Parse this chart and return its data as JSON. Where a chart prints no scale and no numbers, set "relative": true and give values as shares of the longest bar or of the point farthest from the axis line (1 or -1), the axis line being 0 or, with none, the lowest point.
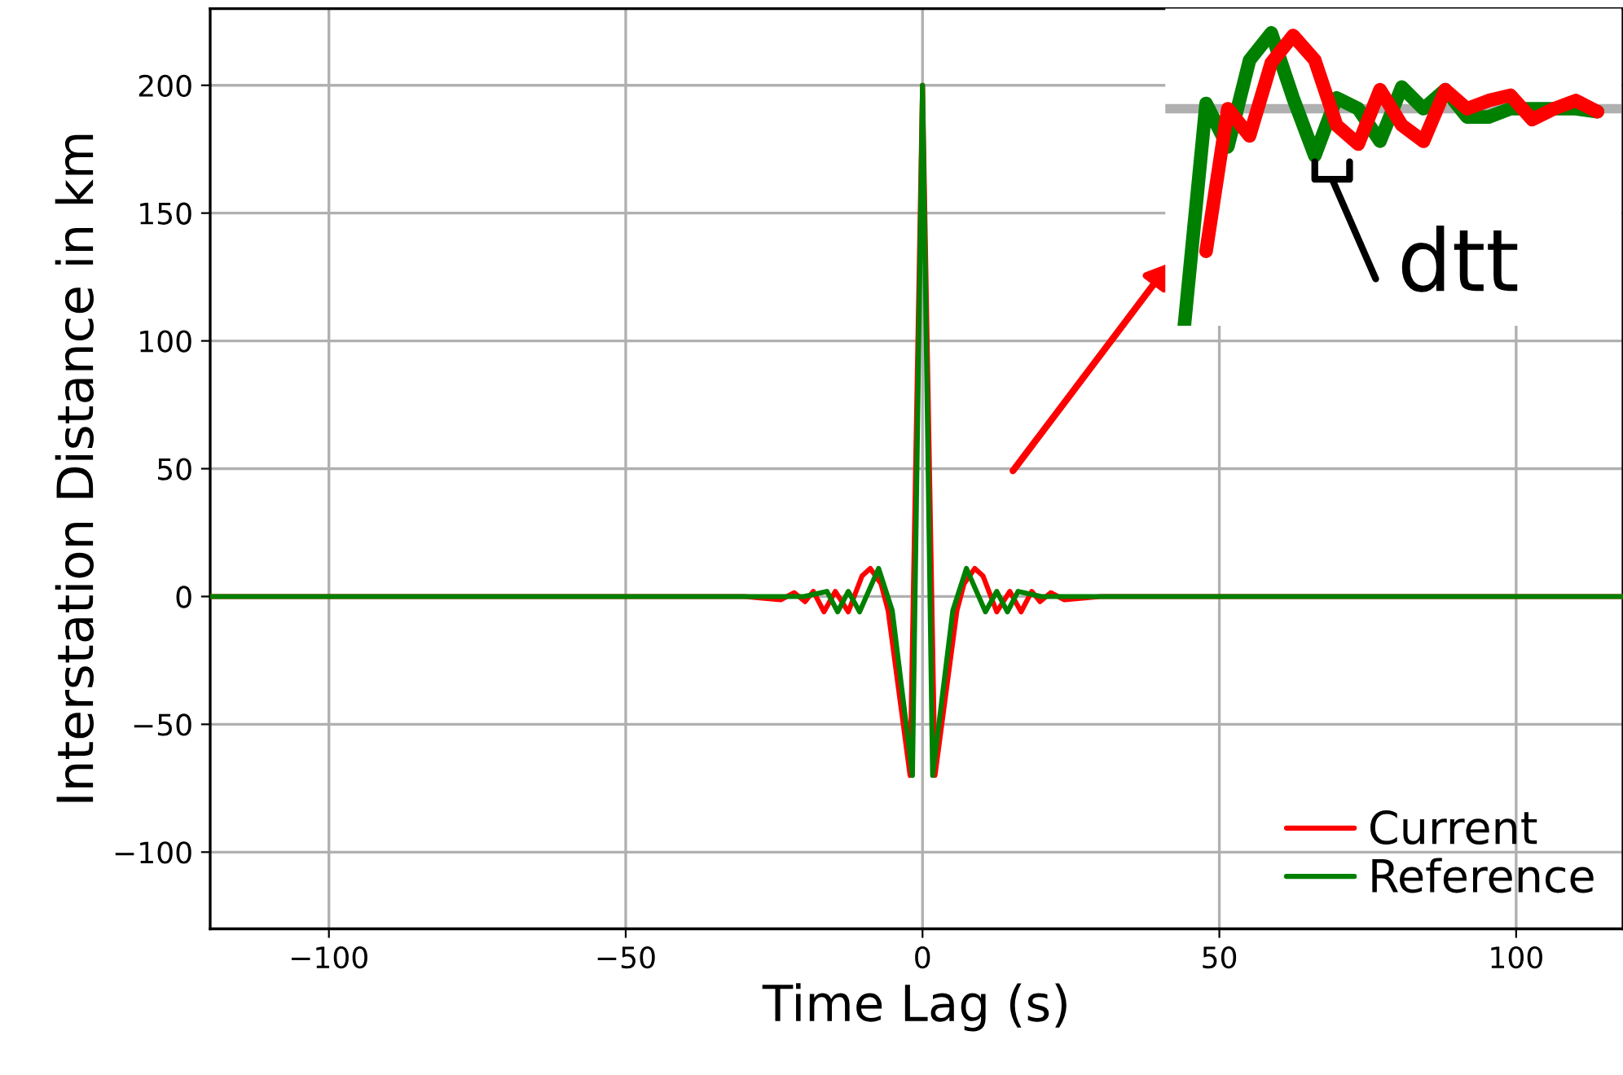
{
  "chart_data": [
    {
      "type": "line",
      "xlabel": "Time Lag (s)",
      "ylabel": "Interstation Distance in km",
      "xlim": [
        -120,
        118
      ],
      "ylim": [
        -130,
        230
      ],
      "xticks": [
        {
          "value": -100,
          "label": "−100"
        },
        {
          "value": -50,
          "label": "−50"
        },
        0,
        50,
        100
      ],
      "yticks": [
        {
          "value": -100,
          "label": "−100"
        },
        {
          "value": -50,
          "label": "−50"
        },
        0,
        50,
        100,
        150,
        200
      ],
      "grid": true,
      "legend": "bottom right",
      "marker": "none",
      "line_style": "solid",
      "series": [
        {
          "name": "Current",
          "color": "#ff0000",
          "x": [
            -120,
            -30,
            -23.9,
            -21.6,
            -19.8,
            -18.4,
            -16.6,
            -14.7,
            -12.5,
            -10.2,
            -8.8,
            -7,
            -5.8,
            -2.1,
            0,
            2.1,
            5.8,
            7,
            8.8,
            10.2,
            12.5,
            14.7,
            16.6,
            18.4,
            19.8,
            21.6,
            23.9,
            30,
            118
          ],
          "values": [
            0,
            0,
            -1.3,
            1.5,
            -2,
            2,
            -6,
            2,
            -6,
            8,
            11,
            5,
            -5.5,
            -70,
            200,
            -70,
            -5.5,
            5,
            11,
            8,
            -6,
            2,
            -6,
            2,
            -2,
            1.5,
            -1.3,
            0,
            0
          ]
        },
        {
          "name": "Reference",
          "color": "#008000",
          "x": [
            -120,
            -30,
            -20,
            -16.1,
            -14.3,
            -12.5,
            -10.6,
            -7.4,
            -5.1,
            -1.7,
            0,
            1.7,
            5.1,
            7.4,
            10.6,
            12.5,
            14.3,
            16.1,
            20,
            30,
            118
          ],
          "values": [
            0,
            0,
            0,
            2,
            -6,
            2,
            -6,
            11,
            -5.5,
            -70,
            200,
            -70,
            -5.5,
            11,
            -6,
            2,
            -6,
            2,
            0,
            0,
            0
          ]
        }
      ]
    },
    {
      "type": "line",
      "relative": true,
      "categories": [
        null,
        null,
        null,
        null,
        null,
        null,
        null,
        null,
        null,
        null,
        null,
        null,
        null,
        null,
        null,
        null,
        null,
        null,
        null,
        null
      ],
      "grid": false,
      "legend": false,
      "line_style": "solid",
      "marker": "none",
      "ref_lines": [
        {
          "axis": "y",
          "value": 0.741,
          "color": "#b0b0b0"
        }
      ],
      "annotations": [
        "dtt"
      ],
      "series": [
        {
          "color": "#008000",
          "values": [
            0,
            0.759,
            0.611,
            0.907,
            1.0,
            0.778,
            0.58,
            0.778,
            0.741,
            0.63,
            0.815,
            0.741,
            0.806,
            0.713,
            0.713,
            0.741,
            0.741,
            0.741,
            0.741,
            0.731
          ]
        },
        {
          "color": "#ff0000",
          "values": [
            null,
            0.254,
            0.741,
            0.648,
            0.898,
            0.991,
            0.907,
            0.685,
            0.62,
            0.806,
            0.685,
            0.63,
            0.806,
            0.741,
            0.769,
            0.787,
            0.704,
            0.741,
            0.769,
            0.731
          ]
        }
      ]
    }
  ]
}
